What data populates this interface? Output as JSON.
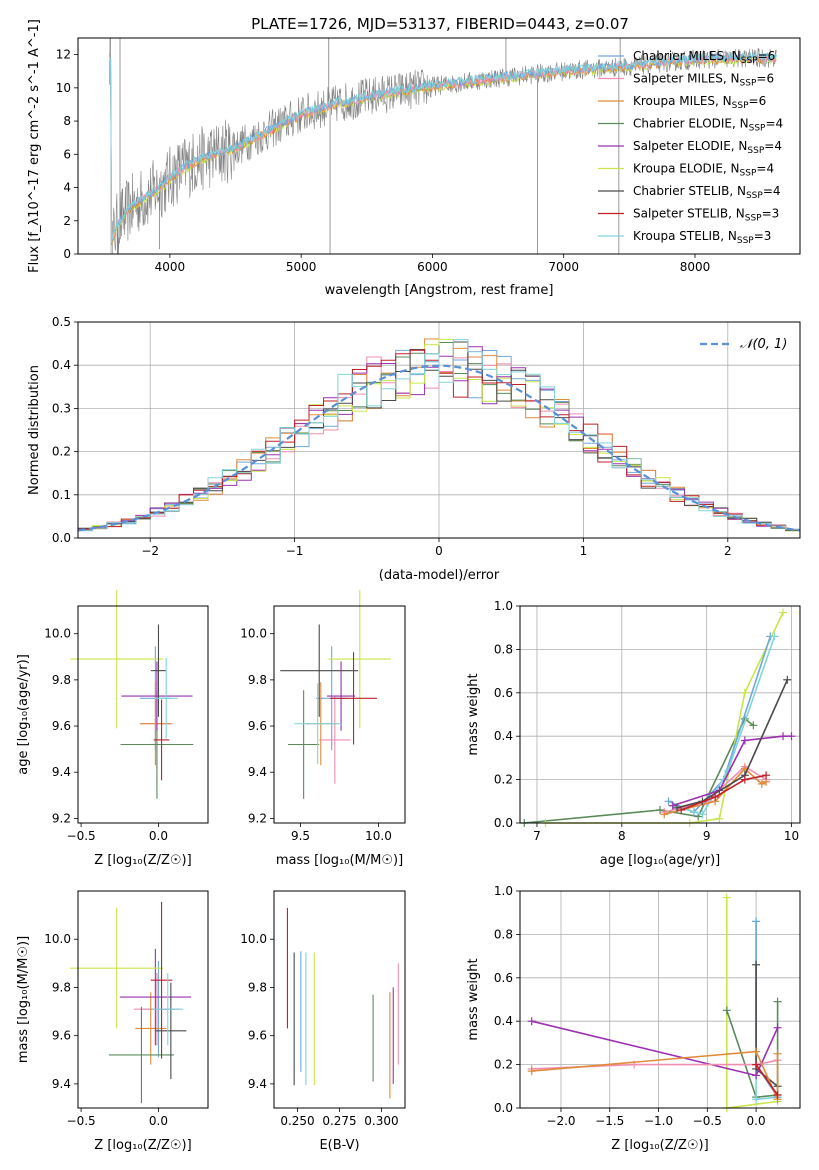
{
  "figure_title": "PLATE=1726, MJD=53137, FIBERID=0443, z=0.07",
  "colors": {
    "chabrier_miles": "#6fa8dc",
    "salpeter_miles": "#f28db2",
    "kroupa_miles": "#e08a3c",
    "chabrier_elodie": "#5a8a5a",
    "salpeter_elodie": "#9b30b0",
    "kroupa_elodie": "#c8e64a",
    "chabrier_stelib": "#4a4a4a",
    "salpeter_stelib": "#c0202a",
    "kroupa_stelib": "#80d4dc",
    "data": "#808080",
    "gaussian": "#5b8fd6"
  },
  "chart_data": [
    {
      "id": "spectrum",
      "type": "line",
      "xlabel": "wavelength [Angstrom, rest frame]",
      "ylabel": "Flux [f_λ10^-17 erg cm^-2 s^-1 A^-1]",
      "xlim": [
        3300,
        8800
      ],
      "ylim": [
        0,
        13
      ],
      "xticks": [
        "4000",
        "5000",
        "6000",
        "7000",
        "8000"
      ],
      "yticks": [
        "0",
        "2",
        "4",
        "6",
        "8",
        "10",
        "12"
      ],
      "grid": true,
      "legend_position": "right",
      "legend": [
        {
          "text": "Chabrier MILES, N",
          "sub": "SSP",
          "tail": "=6",
          "color": "chabrier_miles"
        },
        {
          "text": "Salpeter MILES, N",
          "sub": "SSP",
          "tail": "=6",
          "color": "salpeter_miles"
        },
        {
          "text": "Kroupa MILES, N",
          "sub": "SSP",
          "tail": "=6",
          "color": "kroupa_miles"
        },
        {
          "text": "Chabrier ELODIE, N",
          "sub": "SSP",
          "tail": "=4",
          "color": "chabrier_elodie"
        },
        {
          "text": "Salpeter ELODIE, N",
          "sub": "SSP",
          "tail": "=4",
          "color": "salpeter_elodie"
        },
        {
          "text": "Kroupa ELODIE, N",
          "sub": "SSP",
          "tail": "=4",
          "color": "kroupa_elodie"
        },
        {
          "text": "Chabrier STELIB, N",
          "sub": "SSP",
          "tail": "=4",
          "color": "chabrier_stelib"
        },
        {
          "text": "Salpeter STELIB, N",
          "sub": "SSP",
          "tail": "=3",
          "color": "salpeter_stelib"
        },
        {
          "text": "Kroupa STELIB, N",
          "sub": "SSP",
          "tail": "=3",
          "color": "kroupa_stelib"
        }
      ],
      "continuum_anchors": [
        [
          3550,
          0.6
        ],
        [
          3600,
          1.8
        ],
        [
          3700,
          2.8
        ],
        [
          3850,
          3.6
        ],
        [
          3950,
          4.2
        ],
        [
          4050,
          4.9
        ],
        [
          4200,
          5.6
        ],
        [
          4500,
          6.4
        ],
        [
          4800,
          7.6
        ],
        [
          5000,
          8.4
        ],
        [
          5300,
          9.1
        ],
        [
          5600,
          9.6
        ],
        [
          6000,
          10.1
        ],
        [
          6500,
          10.6
        ],
        [
          7000,
          11.0
        ],
        [
          7500,
          11.3
        ],
        [
          8000,
          11.7
        ],
        [
          8500,
          11.8
        ]
      ],
      "drops": [
        [
          3600,
          0
        ],
        [
          3605,
          0
        ],
        [
          3920,
          0.3
        ],
        [
          5220,
          0
        ],
        [
          6800,
          0
        ],
        [
          7420,
          0
        ]
      ],
      "spikes": [
        [
          3620,
          13
        ],
        [
          5210,
          13
        ],
        [
          6560,
          13
        ],
        [
          7430,
          13
        ]
      ]
    },
    {
      "id": "residuals",
      "type": "histogram",
      "xlabel": "(data-model)/error",
      "ylabel": "Normed distribution",
      "xlim": [
        -2.5,
        2.5
      ],
      "ylim": [
        0,
        0.5
      ],
      "xticks": [
        "−2",
        "−1",
        "0",
        "1",
        "2"
      ],
      "yticks": [
        "0.0",
        "0.1",
        "0.2",
        "0.3",
        "0.4",
        "0.5"
      ],
      "grid": true,
      "bin_width": 0.1,
      "gaussian_label": "𝒩(0, 1)"
    },
    {
      "id": "age_vs_Z",
      "type": "scatter",
      "xlabel": "Z [log₁₀(Z/Z☉)]",
      "ylabel": "age  [log₁₀(age/yr)]",
      "xlim": [
        -0.52,
        0.32
      ],
      "ylim": [
        9.18,
        10.12
      ],
      "xticks": [
        [
          "−0.5",
          -0.5
        ],
        [
          "0.0",
          0.0
        ]
      ],
      "yticks": [
        [
          "9.2",
          9.2
        ],
        [
          "9.4",
          9.4
        ],
        [
          "9.6",
          9.6
        ],
        [
          "9.8",
          9.8
        ],
        [
          "10.0",
          10.0
        ]
      ],
      "points": [
        {
          "c": "chabrier_miles",
          "x": -0.02,
          "y": 9.72,
          "dx": 0.2,
          "dy": 0.45
        },
        {
          "c": "salpeter_miles",
          "x": -0.01,
          "y": 9.61,
          "dx": 0.2,
          "dy": 0.38
        },
        {
          "c": "kroupa_miles",
          "x": -0.02,
          "y": 9.61,
          "dx": 0.2,
          "dy": 0.36
        },
        {
          "c": "chabrier_elodie",
          "x": -0.01,
          "y": 9.52,
          "dx": 0.47,
          "dy": 0.47
        },
        {
          "c": "salpeter_elodie",
          "x": -0.01,
          "y": 9.73,
          "dx": 0.46,
          "dy": 0.3
        },
        {
          "c": "kroupa_elodie",
          "x": -0.27,
          "y": 9.89,
          "dx": 0.6,
          "dy": 0.6
        },
        {
          "c": "chabrier_stelib",
          "x": 0.0,
          "y": 9.84,
          "dx": 0.1,
          "dy": 0.4
        },
        {
          "c": "salpeter_stelib",
          "x": 0.02,
          "y": 9.54,
          "dx": 0.1,
          "dy": 0.35
        },
        {
          "c": "kroupa_stelib",
          "x": 0.05,
          "y": 9.72,
          "dx": 0.15,
          "dy": 0.35
        }
      ]
    },
    {
      "id": "age_vs_mass",
      "type": "scatter",
      "xlabel": "mass [log₁₀(M/M☉)]",
      "ylabel": "",
      "xlim": [
        9.33,
        10.17
      ],
      "ylim": [
        9.18,
        10.12
      ],
      "xticks": [
        [
          "9.5",
          9.5
        ],
        [
          "10.0",
          10.0
        ]
      ],
      "yticks": [
        [
          "9.2",
          9.2
        ],
        [
          "9.4",
          9.4
        ],
        [
          "9.6",
          9.6
        ],
        [
          "9.8",
          9.8
        ],
        [
          "10.0",
          10.0
        ]
      ],
      "points": [
        {
          "c": "chabrier_miles",
          "x": 9.7,
          "y": 9.72,
          "dx": 0.2,
          "dy": 0.45
        },
        {
          "c": "salpeter_miles",
          "x": 9.72,
          "y": 9.54,
          "dx": 0.2,
          "dy": 0.38
        },
        {
          "c": "kroupa_miles",
          "x": 9.63,
          "y": 9.61,
          "dx": 0.2,
          "dy": 0.36
        },
        {
          "c": "chabrier_elodie",
          "x": 9.52,
          "y": 9.52,
          "dx": 0.2,
          "dy": 0.47
        },
        {
          "c": "salpeter_elodie",
          "x": 9.76,
          "y": 9.73,
          "dx": 0.18,
          "dy": 0.3
        },
        {
          "c": "kroupa_elodie",
          "x": 9.88,
          "y": 9.89,
          "dx": 0.4,
          "dy": 0.6
        },
        {
          "c": "chabrier_stelib",
          "x": 9.62,
          "y": 9.84,
          "dx": 0.5,
          "dy": 0.4
        },
        {
          "c": "salpeter_stelib",
          "x": 9.84,
          "y": 9.72,
          "dx": 0.3,
          "dy": 0.4
        },
        {
          "c": "kroupa_stelib",
          "x": 9.61,
          "y": 9.61,
          "dx": 0.3,
          "dy": 0.35
        }
      ]
    },
    {
      "id": "weight_vs_age",
      "type": "line",
      "xlabel": "age  [log₁₀(age/yr)]",
      "ylabel": "mass weight",
      "xlim": [
        6.8,
        10.1
      ],
      "ylim": [
        0,
        1
      ],
      "xticks": [
        [
          "7",
          7
        ],
        [
          "8",
          8
        ],
        [
          "9",
          9
        ],
        [
          "10",
          10
        ]
      ],
      "yticks": [
        [
          "0.0",
          0
        ],
        [
          "0.2",
          0.2
        ],
        [
          "0.4",
          0.4
        ],
        [
          "0.6",
          0.6
        ],
        [
          "0.8",
          0.8
        ],
        [
          "1.0",
          1.0
        ]
      ],
      "series": [
        {
          "c": "chabrier_elodie",
          "x": [
            6.85,
            8.45,
            8.9,
            9.45,
            9.55
          ],
          "y": [
            0.0,
            0.06,
            0.03,
            0.48,
            0.45
          ]
        },
        {
          "c": "kroupa_elodie",
          "x": [
            7.1,
            8.8,
            9.15,
            9.45,
            9.9
          ],
          "y": [
            0.0,
            0.0,
            0.02,
            0.6,
            0.97
          ]
        },
        {
          "c": "chabrier_miles",
          "x": [
            8.55,
            8.85,
            9.2,
            9.75
          ],
          "y": [
            0.1,
            0.05,
            0.2,
            0.86
          ]
        },
        {
          "c": "kroupa_stelib",
          "x": [
            8.6,
            8.95,
            9.25,
            9.8
          ],
          "y": [
            0.08,
            0.04,
            0.24,
            0.86
          ]
        },
        {
          "c": "salpeter_miles",
          "x": [
            8.5,
            9.0,
            9.45,
            9.7
          ],
          "y": [
            0.05,
            0.1,
            0.26,
            0.2
          ]
        },
        {
          "c": "kroupa_miles",
          "x": [
            8.5,
            9.1,
            9.45,
            9.65,
            9.7
          ],
          "y": [
            0.04,
            0.1,
            0.25,
            0.18,
            0.19
          ]
        },
        {
          "c": "salpeter_elodie",
          "x": [
            8.6,
            9.15,
            9.45,
            9.9,
            10.0
          ],
          "y": [
            0.08,
            0.15,
            0.38,
            0.4,
            0.4
          ]
        },
        {
          "c": "chabrier_stelib",
          "x": [
            8.65,
            8.95,
            9.45,
            9.95
          ],
          "y": [
            0.07,
            0.1,
            0.22,
            0.66
          ]
        },
        {
          "c": "salpeter_stelib",
          "x": [
            8.7,
            9.1,
            9.45,
            9.7
          ],
          "y": [
            0.06,
            0.12,
            0.2,
            0.22
          ]
        }
      ]
    },
    {
      "id": "mass_vs_Z",
      "type": "scatter",
      "xlabel": "Z [log₁₀(Z/Z☉)]",
      "ylabel": "mass [log₁₀(M/M☉)]",
      "xlim": [
        -0.52,
        0.32
      ],
      "ylim": [
        9.3,
        10.2
      ],
      "xticks": [
        [
          "−0.5",
          -0.5
        ],
        [
          "0.0",
          0.0
        ]
      ],
      "yticks": [
        [
          "9.4",
          9.4
        ],
        [
          "9.6",
          9.6
        ],
        [
          "9.8",
          9.8
        ],
        [
          "10.0",
          10.0
        ]
      ],
      "points": [
        {
          "c": "chabrier_miles",
          "x": 0.0,
          "y": 9.71,
          "dx": 0.2,
          "dy": 0.4
        },
        {
          "c": "salpeter_miles",
          "x": -0.01,
          "y": 9.71,
          "dx": 0.3,
          "dy": 0.3
        },
        {
          "c": "kroupa_miles",
          "x": -0.05,
          "y": 9.63,
          "dx": 0.2,
          "dy": 0.3
        },
        {
          "c": "chabrier_elodie",
          "x": -0.11,
          "y": 9.52,
          "dx": 0.42,
          "dy": 0.4
        },
        {
          "c": "salpeter_elodie",
          "x": -0.02,
          "y": 9.76,
          "dx": 0.46,
          "dy": 0.4
        },
        {
          "c": "kroupa_elodie",
          "x": -0.27,
          "y": 9.88,
          "dx": 0.6,
          "dy": 0.5
        },
        {
          "c": "chabrier_stelib",
          "x": 0.08,
          "y": 9.62,
          "dx": 0.2,
          "dy": 0.4
        },
        {
          "c": "salpeter_stelib",
          "x": 0.02,
          "y": 9.83,
          "dx": 0.14,
          "dy": 0.65
        },
        {
          "c": "kroupa_stelib",
          "x": 0.06,
          "y": 9.71,
          "dx": 0.2,
          "dy": 0.3
        }
      ]
    },
    {
      "id": "mass_vs_ebv",
      "type": "scatter",
      "xlabel": "E(B-V)",
      "ylabel": "",
      "xlim": [
        0.236,
        0.314
      ],
      "ylim": [
        9.3,
        10.2
      ],
      "xticks": [
        [
          "0.250",
          0.25
        ],
        [
          "0.275",
          0.275
        ],
        [
          "0.300",
          0.3
        ]
      ],
      "yticks": [
        [
          "9.4",
          9.4
        ],
        [
          "9.6",
          9.6
        ],
        [
          "9.8",
          9.8
        ],
        [
          "10.0",
          10.0
        ]
      ],
      "points": [
        {
          "c": "salpeter_stelib",
          "x": 0.244,
          "y": 9.88,
          "dx": 0,
          "dy": 0.5
        },
        {
          "c": "chabrier_stelib",
          "x": 0.248,
          "y": 9.67,
          "dx": 0,
          "dy": 0.55
        },
        {
          "c": "chabrier_miles",
          "x": 0.252,
          "y": 9.7,
          "dx": 0,
          "dy": 0.5
        },
        {
          "c": "kroupa_stelib",
          "x": 0.255,
          "y": 9.67,
          "dx": 0,
          "dy": 0.55
        },
        {
          "c": "kroupa_elodie",
          "x": 0.26,
          "y": 9.67,
          "dx": 0,
          "dy": 0.55
        },
        {
          "c": "chabrier_elodie",
          "x": 0.295,
          "y": 9.59,
          "dx": 0,
          "dy": 0.36
        },
        {
          "c": "kroupa_miles",
          "x": 0.305,
          "y": 9.56,
          "dx": 0,
          "dy": 0.44
        },
        {
          "c": "salpeter_elodie",
          "x": 0.307,
          "y": 9.6,
          "dx": 0,
          "dy": 0.4
        },
        {
          "c": "salpeter_miles",
          "x": 0.31,
          "y": 9.69,
          "dx": 0,
          "dy": 0.42
        }
      ]
    },
    {
      "id": "weight_vs_Z",
      "type": "line",
      "xlabel": "Z [log₁₀(Z/Z☉)]",
      "ylabel": "mass weight",
      "xlim": [
        -2.42,
        0.45
      ],
      "ylim": [
        0,
        1
      ],
      "xticks": [
        [
          "−2.0",
          -2.0
        ],
        [
          "−1.5",
          -1.5
        ],
        [
          "−1.0",
          -1.0
        ],
        [
          "−0.5",
          -0.5
        ],
        [
          "0.0",
          0.0
        ]
      ],
      "yticks": [
        [
          "0.0",
          0
        ],
        [
          "0.2",
          0.2
        ],
        [
          "0.4",
          0.4
        ],
        [
          "0.6",
          0.6
        ],
        [
          "0.8",
          0.8
        ],
        [
          "1.0",
          1.0
        ]
      ],
      "series": [
        {
          "c": "kroupa_elodie",
          "x": [
            -0.3,
            -0.3,
            0.22
          ],
          "y": [
            0.97,
            0.0,
            0.03
          ]
        },
        {
          "c": "chabrier_elodie",
          "x": [
            -0.3,
            0.0,
            0.22,
            0.22
          ],
          "y": [
            0.45,
            0.05,
            0.06,
            0.49
          ]
        },
        {
          "c": "kroupa_stelib",
          "x": [
            0.0,
            0.0,
            0.22
          ],
          "y": [
            0.86,
            0.04,
            0.05
          ]
        },
        {
          "c": "chabrier_miles",
          "x": [
            0.0,
            0.0,
            0.22
          ],
          "y": [
            0.86,
            0.2,
            0.05
          ]
        },
        {
          "c": "chabrier_stelib",
          "x": [
            0.0,
            0.0,
            0.22
          ],
          "y": [
            0.66,
            0.18,
            0.1
          ]
        },
        {
          "c": "salpeter_elodie",
          "x": [
            -2.3,
            0.0,
            0.22
          ],
          "y": [
            0.4,
            0.15,
            0.37
          ]
        },
        {
          "c": "salpeter_miles",
          "x": [
            -2.3,
            -1.25,
            0.0,
            0.22
          ],
          "y": [
            0.18,
            0.2,
            0.2,
            0.22
          ]
        },
        {
          "c": "kroupa_miles",
          "x": [
            -2.3,
            0.0,
            0.22,
            0.22
          ],
          "y": [
            0.17,
            0.26,
            0.04,
            0.25
          ]
        },
        {
          "c": "salpeter_stelib",
          "x": [
            0.0,
            0.22
          ],
          "y": [
            0.2,
            0.06
          ]
        }
      ]
    }
  ]
}
